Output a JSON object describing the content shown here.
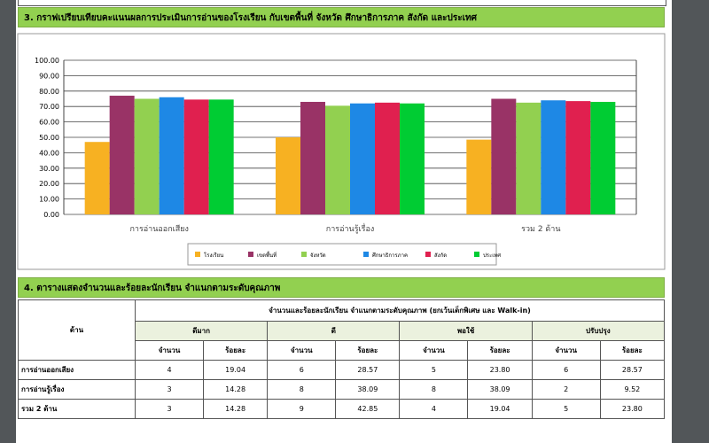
{
  "section3": {
    "title": "3. กราฟเปรียบเทียบคะแนนผลการประเมินการอ่านของโรงเรียน กับเขตพื้นที่ จังหวัด ศึกษาธิการภาค สังกัด และประเทศ"
  },
  "chart_data": {
    "type": "bar",
    "categories": [
      "การอ่านออกเสียง",
      "การอ่านรู้เรื่อง",
      "รวม 2 ด้าน"
    ],
    "series": [
      {
        "name": "โรงเรียน",
        "color": "#f7b122",
        "values": [
          47,
          50,
          48.5
        ]
      },
      {
        "name": "เขตพื้นที่",
        "color": "#993366",
        "values": [
          77,
          73,
          75
        ]
      },
      {
        "name": "จังหวัด",
        "color": "#92d050",
        "values": [
          75,
          70.5,
          72.5
        ]
      },
      {
        "name": "ศึกษาธิการภาค",
        "color": "#1e88e5",
        "values": [
          76,
          72,
          74
        ]
      },
      {
        "name": "สังกัด",
        "color": "#e0204f",
        "values": [
          74.5,
          72.5,
          73.5
        ]
      },
      {
        "name": "ประเทศ",
        "color": "#00cc33",
        "values": [
          74.5,
          72,
          73
        ]
      }
    ],
    "ylim": [
      0,
      100
    ],
    "yticks": [
      {
        "value": 0,
        "label": "0.00"
      },
      {
        "value": 10,
        "label": "10.00"
      },
      {
        "value": 20,
        "label": "20.00"
      },
      {
        "value": 30,
        "label": "30.00"
      },
      {
        "value": 40,
        "label": "40.00"
      },
      {
        "value": 50,
        "label": "50.00"
      },
      {
        "value": 60,
        "label": "60.00"
      },
      {
        "value": 70,
        "label": "70.00"
      },
      {
        "value": 80,
        "label": "80.00"
      },
      {
        "value": 90,
        "label": "90.00"
      },
      {
        "value": 100,
        "label": "100.00"
      }
    ],
    "grid": true
  },
  "section4": {
    "title": "4. ตารางแสดงจำนวนและร้อยละนักเรียน จำแนกตามระดับคุณภาพ"
  },
  "table": {
    "corner": "ด้าน",
    "caption": "จำนวนและร้อยละนักเรียน จำแนกตามระดับคุณภาพ (ยกเว้นเด็กพิเศษ และ  Walk-in)",
    "groups": [
      "ดีมาก",
      "ดี",
      "พอใช้",
      "ปรับปรุง"
    ],
    "subheaders": [
      "จำนวน",
      "ร้อยละ",
      "จำนวน",
      "ร้อยละ",
      "จำนวน",
      "ร้อยละ",
      "จำนวน",
      "ร้อยละ"
    ],
    "rows": [
      [
        "การอ่านออกเสียง",
        "4",
        "19.04",
        "6",
        "28.57",
        "5",
        "23.80",
        "6",
        "28.57"
      ],
      [
        "การอ่านรู้เรื่อง",
        "3",
        "14.28",
        "8",
        "38.09",
        "8",
        "38.09",
        "2",
        "9.52"
      ],
      [
        "รวม 2 ด้าน",
        "3",
        "14.28",
        "9",
        "42.85",
        "4",
        "19.04",
        "5",
        "23.80"
      ]
    ]
  }
}
